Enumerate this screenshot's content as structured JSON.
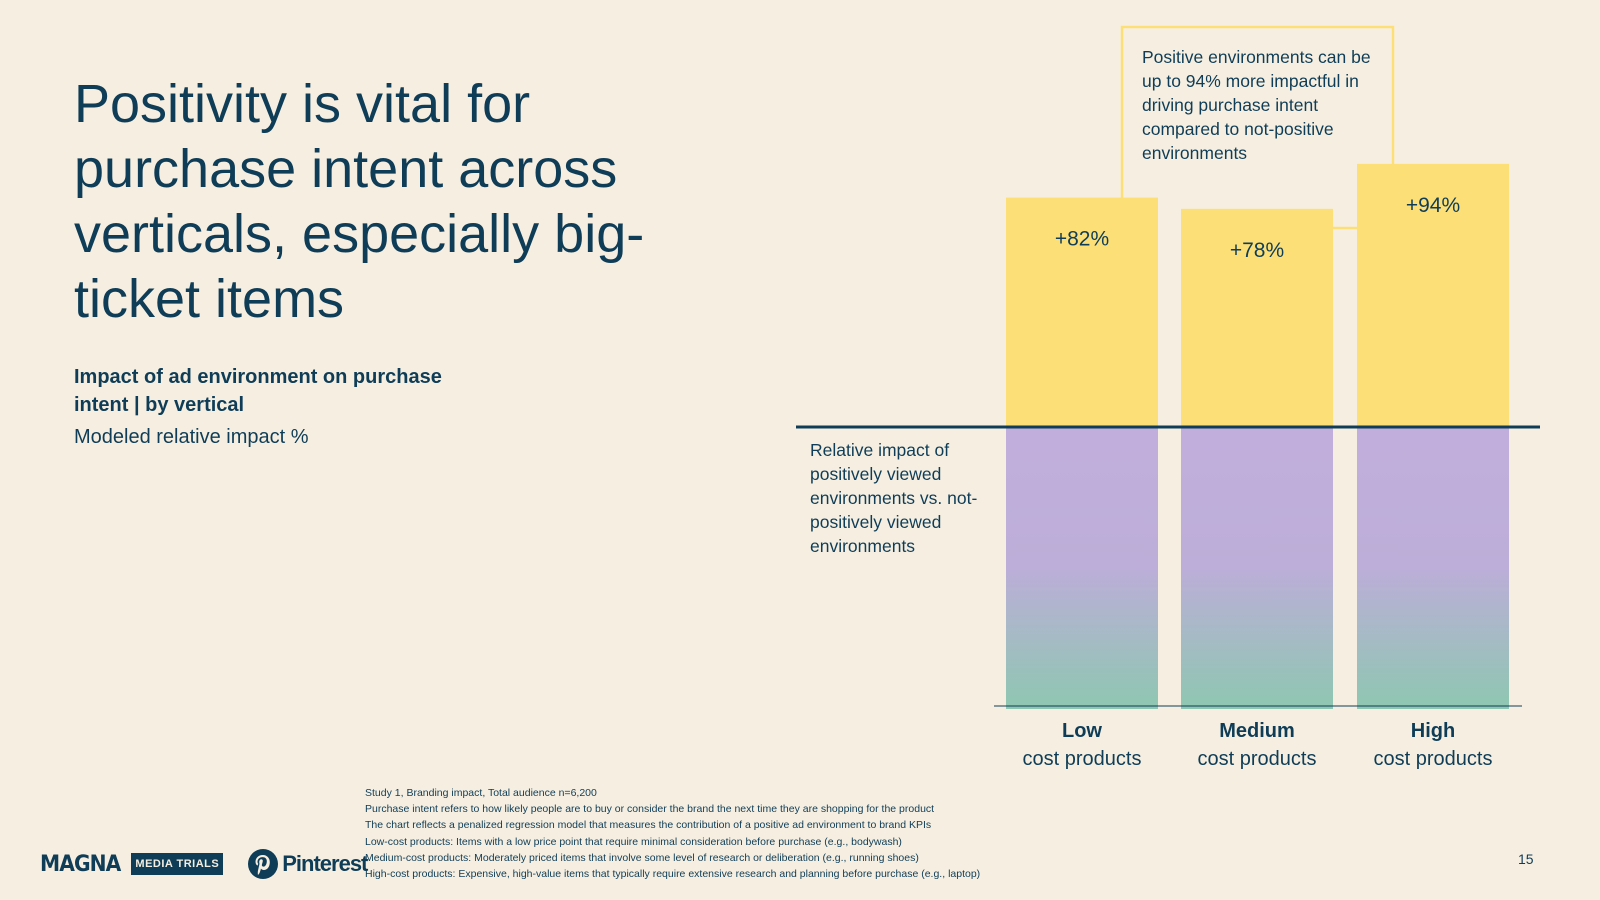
{
  "slide": {
    "title": "Positivity is vital for purchase intent across verticals, especially big-ticket items",
    "subtitle": "Impact of ad environment on purchase intent | by vertical",
    "measure": "Modeled relative impact %",
    "callout": "Positive environments can be up to 94% more impactful in driving purchase intent compared to not-positive environments",
    "axis_note": "Relative impact of positively viewed environments vs. not-positively viewed environments",
    "page_number": "15"
  },
  "notes": [
    "Study 1, Branding impact, Total audience n=6,200",
    "Purchase intent refers to how likely people are to buy or consider the brand the next time they are shopping for the product",
    "The chart reflects a penalized regression model that measures the contribution of a positive ad environment to brand KPIs",
    "Low-cost products: Items with a low price point that require minimal consideration before purchase (e.g., bodywash)",
    "Medium-cost products: Moderately priced items that involve some level of research or deliberation (e.g., running shoes)",
    "High-cost products: Expensive, high-value items that typically require extensive research and planning before purchase (e.g., laptop)"
  ],
  "logos": {
    "magna": "MAGNA",
    "media_trials": "MEDIA TRIALS",
    "pinterest": "Pinterest"
  },
  "colors": {
    "navy": "#0f3d57",
    "yellow": "#fddf78",
    "purple": "#c2aedc",
    "teal": "#8ec7b1",
    "background": "#f6efe1"
  },
  "chart_data": {
    "type": "bar",
    "title": "Impact of ad environment on purchase intent | by vertical",
    "ylabel": "Modeled relative impact %",
    "categories": [
      {
        "bold": "Low",
        "sub": "cost products"
      },
      {
        "bold": "Medium",
        "sub": "cost products"
      },
      {
        "bold": "High",
        "sub": "cost products"
      }
    ],
    "values": [
      82,
      78,
      94
    ],
    "value_labels": [
      "+82%",
      "+78%",
      "+94%"
    ],
    "baseline_value": 100,
    "ylim": [
      0,
      200
    ]
  }
}
